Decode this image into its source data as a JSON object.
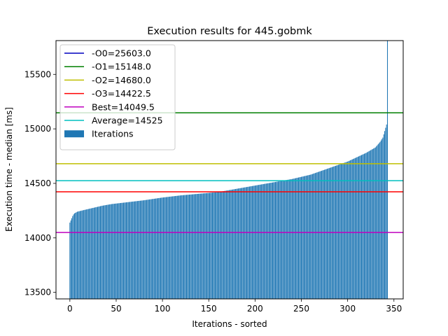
{
  "chart_data": {
    "type": "bar",
    "title": "Execution results for 445.gobmk",
    "xlabel": "Iterations - sorted",
    "ylabel": "Execution time - median [ms]",
    "xlim": [
      -15,
      360
    ],
    "ylim": [
      13440,
      15810
    ],
    "xticks": [
      0,
      50,
      100,
      150,
      200,
      250,
      300,
      350
    ],
    "yticks": [
      13500,
      14000,
      14500,
      15000,
      15500
    ],
    "bar_color": "#1f77b4",
    "legend_position": "upper-left",
    "iterations": {
      "name": "Iterations",
      "count": 344,
      "x_start": 0,
      "sorted_values_profile": [
        [
          0,
          14140
        ],
        [
          1,
          14160
        ],
        [
          2,
          14180
        ],
        [
          3,
          14200
        ],
        [
          4,
          14215
        ],
        [
          5,
          14225
        ],
        [
          8,
          14240
        ],
        [
          15,
          14255
        ],
        [
          25,
          14275
        ],
        [
          35,
          14295
        ],
        [
          45,
          14310
        ],
        [
          60,
          14325
        ],
        [
          80,
          14345
        ],
        [
          100,
          14370
        ],
        [
          120,
          14390
        ],
        [
          140,
          14405
        ],
        [
          160,
          14420
        ],
        [
          180,
          14450
        ],
        [
          200,
          14480
        ],
        [
          220,
          14510
        ],
        [
          240,
          14540
        ],
        [
          260,
          14580
        ],
        [
          280,
          14640
        ],
        [
          300,
          14700
        ],
        [
          320,
          14780
        ],
        [
          330,
          14830
        ],
        [
          335,
          14880
        ],
        [
          338,
          14920
        ],
        [
          340,
          14980
        ],
        [
          341,
          15010
        ],
        [
          342,
          15040
        ],
        [
          343,
          15810
        ]
      ]
    },
    "reference_lines": [
      {
        "label": "-O0=25603.0",
        "value": 25603.0,
        "color": "#0000bf"
      },
      {
        "label": "-O1=15148.0",
        "value": 15148.0,
        "color": "#007f00"
      },
      {
        "label": "-O2=14680.0",
        "value": 14680.0,
        "color": "#bfbf00"
      },
      {
        "label": "-O3=14422.5",
        "value": 14422.5,
        "color": "#ff0000"
      },
      {
        "label": "Best=14049.5",
        "value": 14049.5,
        "color": "#bf00bf"
      },
      {
        "label": "Average=14525",
        "value": 14525,
        "color": "#00bfbf"
      }
    ]
  }
}
